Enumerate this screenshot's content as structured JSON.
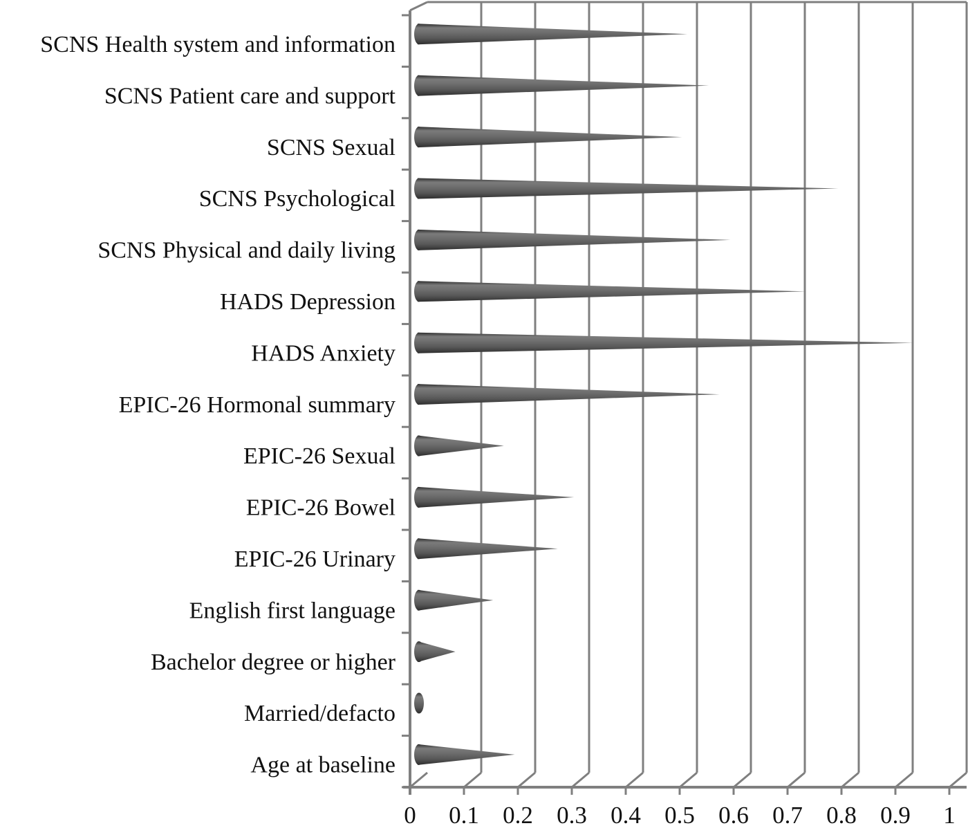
{
  "page": {
    "background": "#ffffff"
  },
  "chart_data": {
    "type": "bar",
    "orientation": "horizontal",
    "bar_shape": "3d-cone",
    "style": "excel-3d-cone-chart",
    "title": "",
    "xlabel": "",
    "ylabel": "",
    "categories": [
      "SCNS Health system and information",
      "SCNS Patient care and support",
      "SCNS Sexual",
      "SCNS Psychological",
      "SCNS Physical and daily living",
      "HADS Depression",
      "HADS Anxiety",
      "EPIC-26 Hormonal summary",
      "EPIC-26 Sexual",
      "EPIC-26 Bowel",
      "EPIC-26 Urinary",
      "English first language",
      "Bachelor degree or higher",
      "Married/defacto",
      "Age at baseline"
    ],
    "values": [
      0.5,
      0.54,
      0.49,
      0.78,
      0.58,
      0.72,
      0.92,
      0.56,
      0.16,
      0.29,
      0.26,
      0.14,
      0.07,
      0.01,
      0.18
    ],
    "xlim": [
      0,
      1
    ],
    "x_tick_labels": [
      "0",
      "0.1",
      "0.2",
      "0.3",
      "0.4",
      "0.5",
      "0.6",
      "0.7",
      "0.8",
      "0.9",
      "1"
    ],
    "grid": true,
    "legend": false,
    "colors": {
      "bar_dark": "#2e2e2e",
      "bar_mid": "#565656",
      "bar_light": "#7b7b7b",
      "gridline": "#7f7f7f",
      "axis": "#7f7f7f",
      "text": "#111111",
      "background": "#ffffff"
    }
  }
}
